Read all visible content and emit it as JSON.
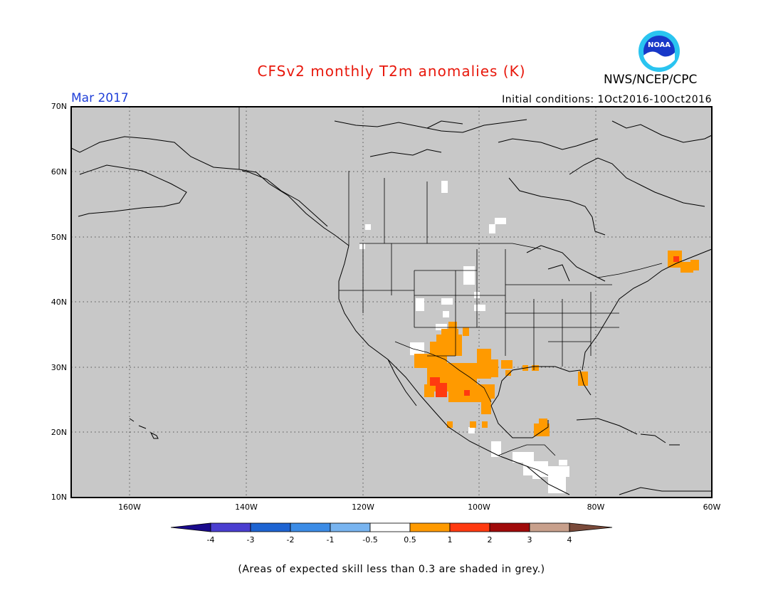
{
  "header": {
    "title": "CFSv2 monthly T2m anomalies (K)",
    "agency": "NWS/NCEP/CPC",
    "logo_text": "NOAA",
    "month": "Mar 2017",
    "initial_conditions": "Initial conditions: 1Oct2016-10Oct2016"
  },
  "map": {
    "lat_labels": [
      "70N",
      "60N",
      "50N",
      "40N",
      "30N",
      "20N",
      "10N"
    ],
    "lon_labels": [
      "160W",
      "140W",
      "120W",
      "100W",
      "80W",
      "60W"
    ],
    "lat_range": [
      10,
      70
    ],
    "lon_range": [
      -171,
      -60
    ],
    "background_color": "#c8c8c8",
    "grid": "dotted"
  },
  "colorbar": {
    "labels": [
      "-4",
      "-3",
      "-2",
      "-1",
      "-0.5",
      "0.5",
      "1",
      "2",
      "3",
      "4"
    ],
    "colors": [
      "#1a0a8c",
      "#4a3ed0",
      "#1e64d2",
      "#3c8ce6",
      "#78b4f0",
      "#ffffff",
      "#ff9a00",
      "#ff3a10",
      "#a00a0a",
      "#c8a08c",
      "#7a4a3a"
    ]
  },
  "footer": {
    "note": "(Areas of expected skill less than 0.3 are shaded in grey.)"
  }
}
